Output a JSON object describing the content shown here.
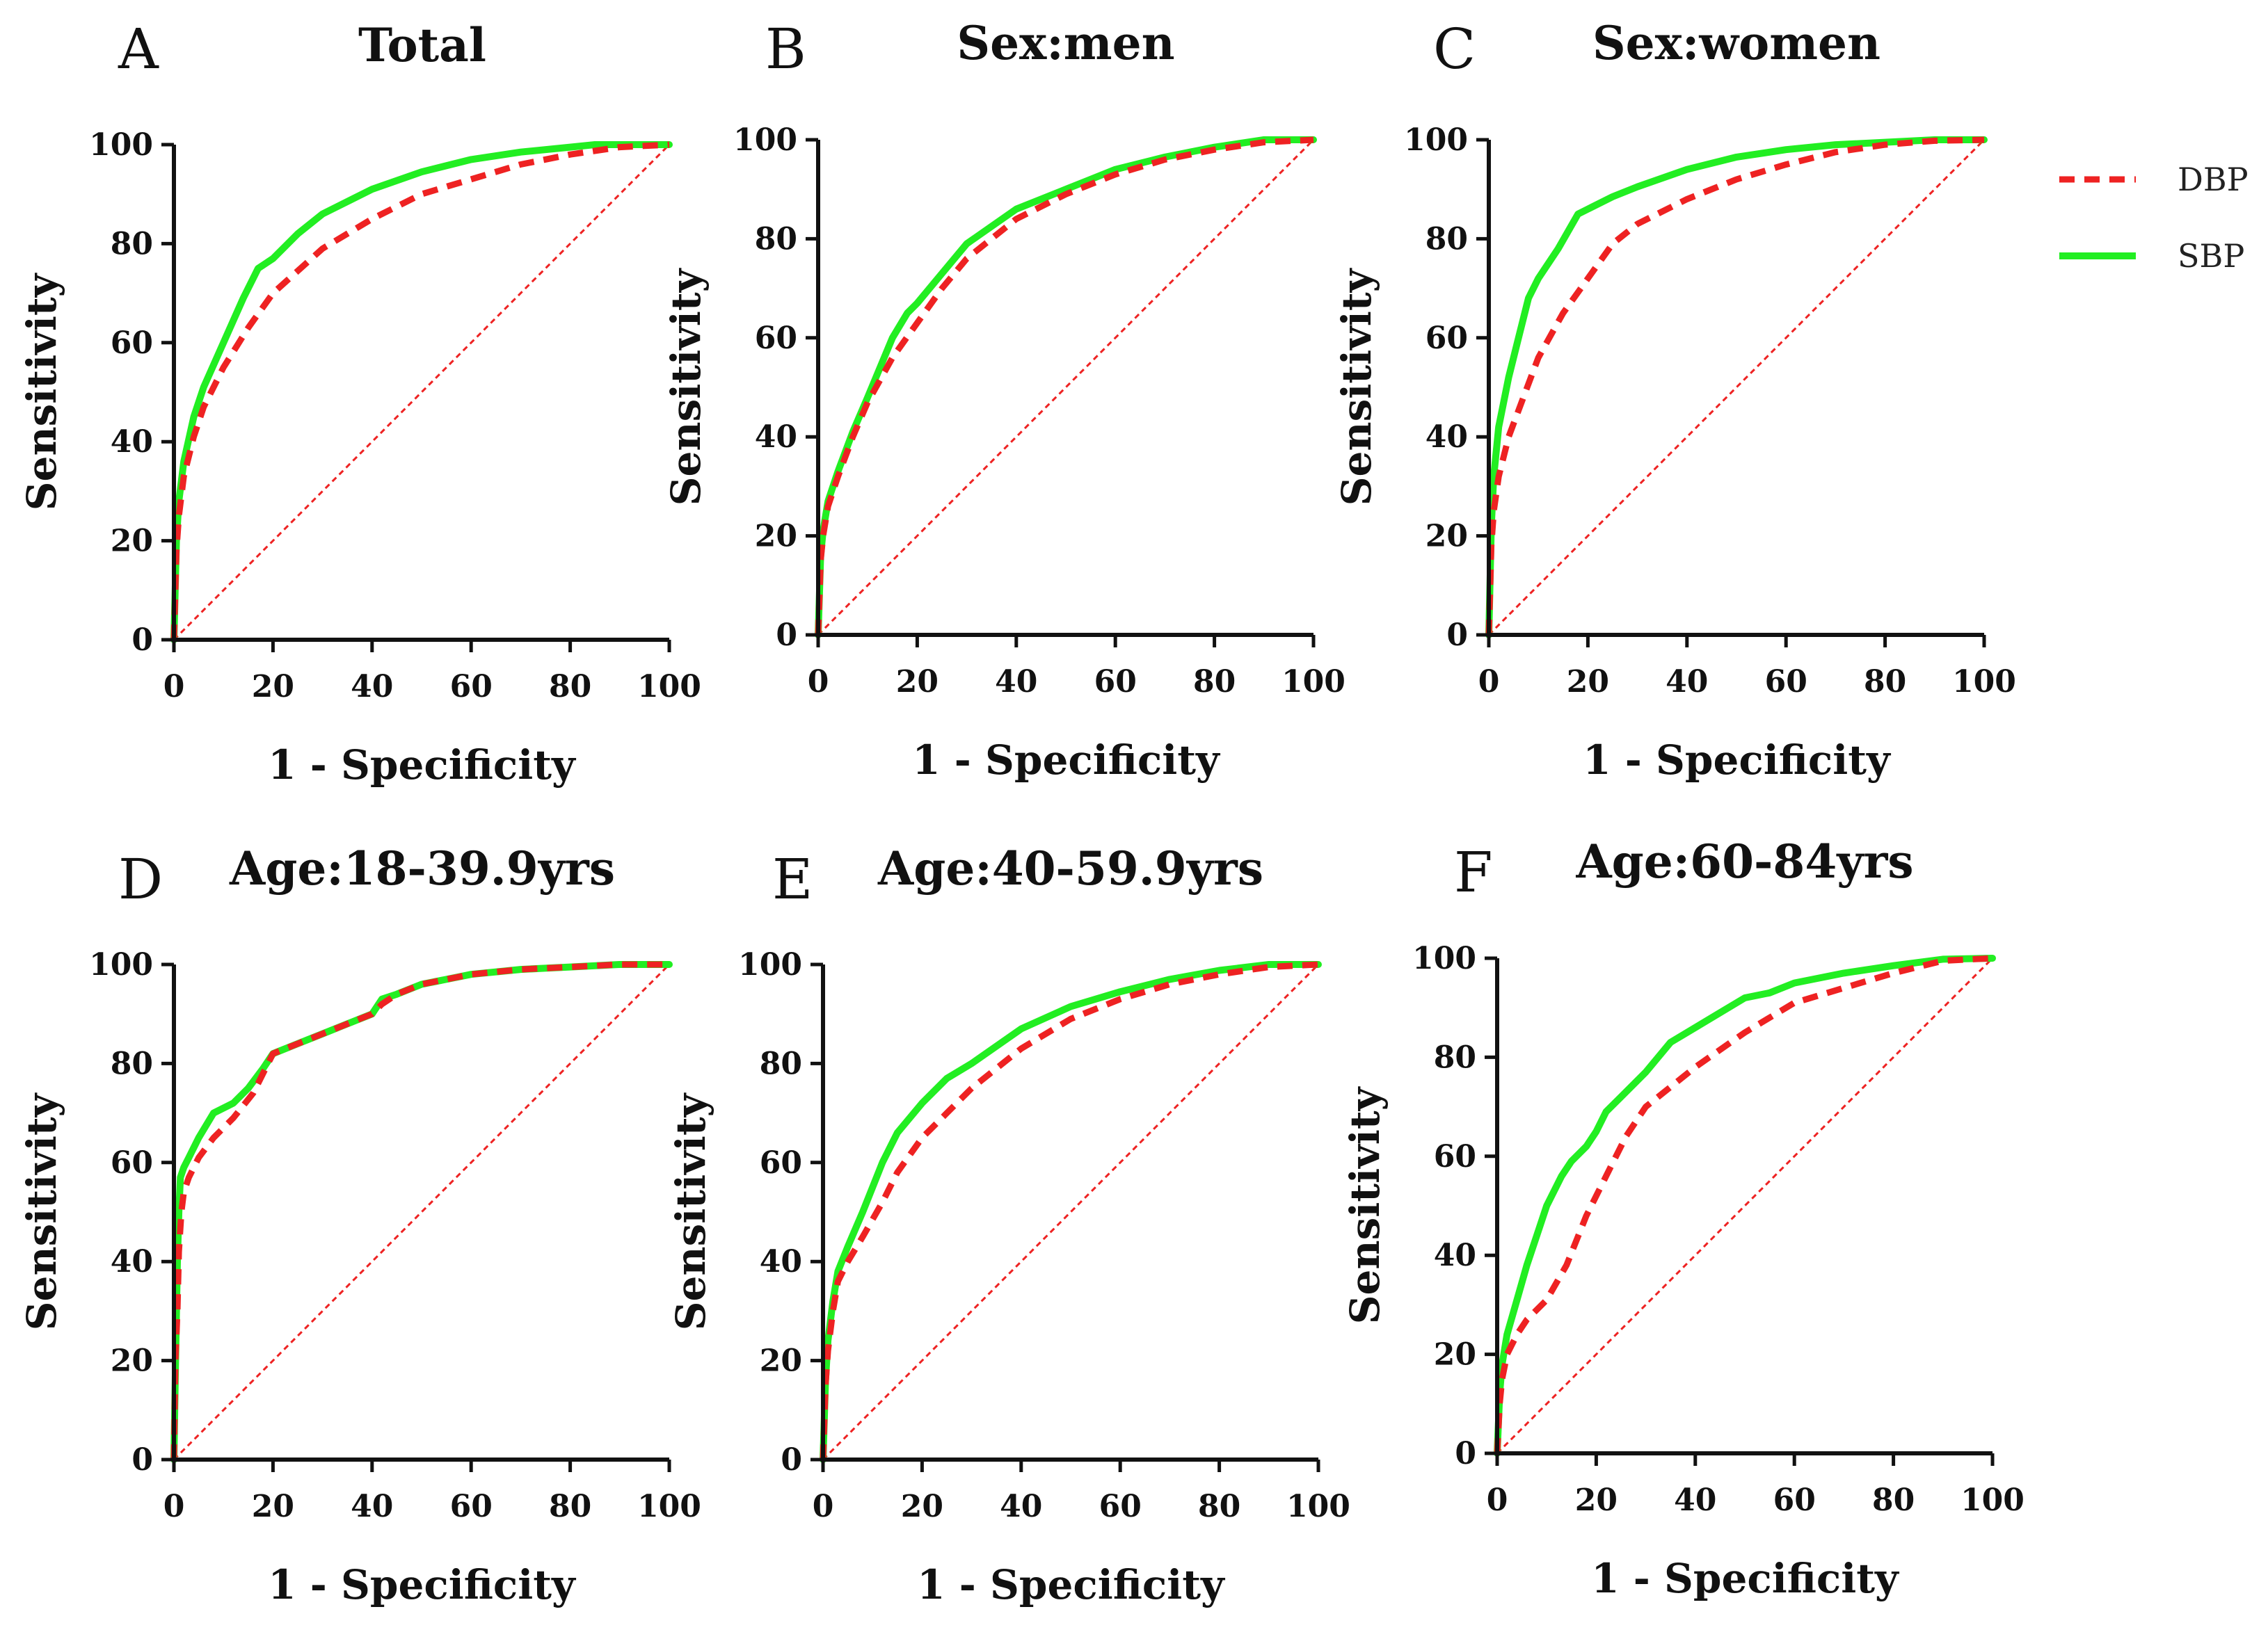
{
  "colors": {
    "dbp": "#ee2222",
    "sbp": "#22ee22",
    "reference": "#ee2222",
    "axis": "#111111"
  },
  "legend": {
    "items": [
      {
        "key": "dbp",
        "label": "DBP"
      },
      {
        "key": "sbp",
        "label": "SBP"
      }
    ]
  },
  "chart_data": [
    {
      "type": "line",
      "letter": "A",
      "title": "Total",
      "xlabel": "1 - Specificity",
      "ylabel": "Sensitivity",
      "xlim": [
        0,
        100
      ],
      "ylim": [
        0,
        100
      ],
      "xticks": [
        0,
        20,
        40,
        60,
        80,
        100
      ],
      "yticks": [
        0,
        20,
        40,
        60,
        80,
        100
      ],
      "series": [
        {
          "name": "DBP",
          "x": [
            0,
            0.5,
            1,
            2,
            4,
            6,
            10,
            15,
            20,
            30,
            40,
            50,
            60,
            70,
            80,
            90,
            100
          ],
          "y": [
            0,
            18,
            25,
            33,
            41,
            47,
            55,
            63,
            70,
            79,
            85,
            90,
            93,
            96,
            98,
            99.5,
            100
          ]
        },
        {
          "name": "SBP",
          "x": [
            0,
            0.5,
            1,
            2,
            4,
            6,
            10,
            14,
            17,
            20,
            25,
            30,
            40,
            50,
            60,
            70,
            80,
            85,
            90,
            100
          ],
          "y": [
            0,
            20,
            28,
            36,
            45,
            51,
            60,
            69,
            75,
            77,
            82,
            86,
            91,
            94.5,
            97,
            98.5,
            99.5,
            100,
            100,
            100
          ]
        }
      ],
      "reference_line": {
        "x": [
          0,
          100
        ],
        "y": [
          0,
          100
        ]
      }
    },
    {
      "type": "line",
      "letter": "B",
      "title": "Sex:men",
      "xlabel": "1 - Specificity",
      "ylabel": "Sensitivity",
      "xlim": [
        0,
        100
      ],
      "ylim": [
        0,
        100
      ],
      "xticks": [
        0,
        20,
        40,
        60,
        80,
        100
      ],
      "yticks": [
        0,
        20,
        40,
        60,
        80,
        100
      ],
      "series": [
        {
          "name": "DBP",
          "x": [
            0,
            0.5,
            1,
            2,
            4,
            7,
            10,
            15,
            20,
            25,
            30,
            40,
            50,
            60,
            70,
            80,
            90,
            100
          ],
          "y": [
            0,
            15,
            20,
            26,
            32,
            40,
            47,
            56,
            63,
            70,
            76,
            84,
            89,
            93,
            96,
            98,
            99.5,
            100
          ]
        },
        {
          "name": "SBP",
          "x": [
            0,
            0.5,
            1,
            2,
            4,
            7,
            10,
            15,
            18,
            20,
            25,
            30,
            40,
            50,
            60,
            70,
            80,
            90,
            100
          ],
          "y": [
            0,
            16,
            21,
            27,
            33,
            41,
            48,
            60,
            65,
            67,
            73,
            79,
            86,
            90,
            94,
            96.5,
            98.5,
            100,
            100
          ]
        }
      ],
      "reference_line": {
        "x": [
          0,
          100
        ],
        "y": [
          0,
          100
        ]
      }
    },
    {
      "type": "line",
      "letter": "C",
      "title": "Sex:women",
      "xlabel": "1 - Specificity",
      "ylabel": "Sensitivity",
      "xlim": [
        0,
        100
      ],
      "ylim": [
        0,
        100
      ],
      "xticks": [
        0,
        20,
        40,
        60,
        80,
        100
      ],
      "yticks": [
        0,
        20,
        40,
        60,
        80,
        100
      ],
      "series": [
        {
          "name": "DBP",
          "x": [
            0,
            0.5,
            1,
            2,
            4,
            7,
            10,
            15,
            20,
            25,
            30,
            40,
            50,
            60,
            70,
            80,
            90,
            100
          ],
          "y": [
            0,
            18,
            25,
            32,
            40,
            48,
            56,
            65,
            72,
            79,
            83,
            88,
            92,
            95,
            97.5,
            99,
            99.8,
            100
          ]
        },
        {
          "name": "SBP",
          "x": [
            0,
            0.5,
            1,
            2,
            4,
            6,
            8,
            10,
            14,
            18,
            20,
            25,
            30,
            40,
            50,
            60,
            70,
            80,
            90,
            100
          ],
          "y": [
            0,
            22,
            32,
            42,
            52,
            60,
            68,
            72,
            78,
            85,
            86,
            88.5,
            90.5,
            94,
            96.5,
            98,
            99,
            99.5,
            100,
            100
          ]
        }
      ],
      "reference_line": {
        "x": [
          0,
          100
        ],
        "y": [
          0,
          100
        ]
      }
    },
    {
      "type": "line",
      "letter": "D",
      "title": "Age:18-39.9yrs",
      "xlabel": "1 - Specificity",
      "ylabel": "Sensitivity",
      "xlim": [
        0,
        100
      ],
      "ylim": [
        0,
        100
      ],
      "xticks": [
        0,
        20,
        40,
        60,
        80,
        100
      ],
      "yticks": [
        0,
        20,
        40,
        60,
        80,
        100
      ],
      "series": [
        {
          "name": "DBP",
          "x": [
            0,
            0.3,
            0.7,
            1,
            1.5,
            2,
            3,
            5,
            8,
            12,
            16,
            20,
            25,
            30,
            35,
            40,
            42,
            45,
            50,
            60,
            70,
            80,
            90,
            100
          ],
          "y": [
            0,
            20,
            30,
            42,
            50,
            54,
            57,
            61,
            65,
            69,
            74,
            82,
            84,
            86,
            88,
            90,
            92,
            94,
            96,
            98,
            99,
            99.5,
            100,
            100
          ]
        },
        {
          "name": "SBP",
          "x": [
            0,
            0.3,
            0.7,
            1,
            1.3,
            2,
            3,
            5,
            8,
            12,
            15,
            18,
            20,
            25,
            30,
            35,
            40,
            42,
            45,
            50,
            60,
            70,
            80,
            90,
            100
          ],
          "y": [
            0,
            18,
            40,
            50,
            57,
            59,
            61,
            65,
            70,
            72,
            75,
            79,
            82,
            84,
            86,
            88,
            90,
            93,
            94,
            96,
            98,
            99,
            99.5,
            100,
            100
          ]
        }
      ],
      "reference_line": {
        "x": [
          0,
          100
        ],
        "y": [
          0,
          100
        ]
      }
    },
    {
      "type": "line",
      "letter": "E",
      "title": "Age:40-59.9yrs",
      "xlabel": "1 - Specificity",
      "ylabel": "Sensitivity",
      "xlim": [
        0,
        100
      ],
      "ylim": [
        0,
        100
      ],
      "xticks": [
        0,
        20,
        40,
        60,
        80,
        100
      ],
      "yticks": [
        0,
        20,
        40,
        60,
        80,
        100
      ],
      "series": [
        {
          "name": "DBP",
          "x": [
            0,
            0.5,
            1,
            2,
            3,
            5,
            8,
            12,
            15,
            20,
            25,
            30,
            40,
            50,
            60,
            70,
            80,
            90,
            100
          ],
          "y": [
            0,
            15,
            22,
            30,
            36,
            40,
            45,
            52,
            58,
            65,
            70,
            75,
            83,
            89,
            93,
            96,
            98,
            99.5,
            100
          ]
        },
        {
          "name": "SBP",
          "x": [
            0,
            0.5,
            1,
            2,
            3,
            5,
            8,
            12,
            15,
            20,
            25,
            30,
            40,
            50,
            60,
            70,
            80,
            90,
            100
          ],
          "y": [
            0,
            16,
            24,
            32,
            38,
            43,
            50,
            60,
            66,
            72,
            77,
            80,
            87,
            91.5,
            94.5,
            97,
            98.8,
            100,
            100
          ]
        }
      ],
      "reference_line": {
        "x": [
          0,
          100
        ],
        "y": [
          0,
          100
        ]
      }
    },
    {
      "type": "line",
      "letter": "F",
      "title": "Age:60-84yrs",
      "xlabel": "1 - Specificity",
      "ylabel": "Sensitivity",
      "xlim": [
        0,
        100
      ],
      "ylim": [
        0,
        100
      ],
      "xticks": [
        0,
        20,
        40,
        60,
        80,
        100
      ],
      "yticks": [
        0,
        20,
        40,
        60,
        80,
        100
      ],
      "series": [
        {
          "name": "DBP",
          "x": [
            0,
            0.5,
            1,
            2,
            4,
            6,
            10,
            14,
            18,
            22,
            26,
            30,
            35,
            40,
            50,
            60,
            70,
            80,
            90,
            100
          ],
          "y": [
            0,
            10,
            15,
            20,
            24,
            27,
            31,
            38,
            48,
            56,
            64,
            70,
            74,
            78,
            85,
            91,
            94,
            97,
            99.5,
            100
          ]
        },
        {
          "name": "SBP",
          "x": [
            0,
            0.5,
            1,
            2,
            4,
            6,
            8,
            10,
            13,
            15,
            18,
            20,
            22,
            25,
            30,
            35,
            40,
            45,
            50,
            55,
            60,
            70,
            80,
            90,
            100
          ],
          "y": [
            0,
            12,
            18,
            24,
            31,
            38,
            44,
            50,
            56,
            59,
            62,
            65,
            69,
            72,
            77,
            83,
            86,
            89,
            92,
            93,
            95,
            97,
            98.5,
            99.8,
            100
          ]
        }
      ],
      "reference_line": {
        "x": [
          0,
          100
        ],
        "y": [
          0,
          100
        ]
      }
    }
  ]
}
